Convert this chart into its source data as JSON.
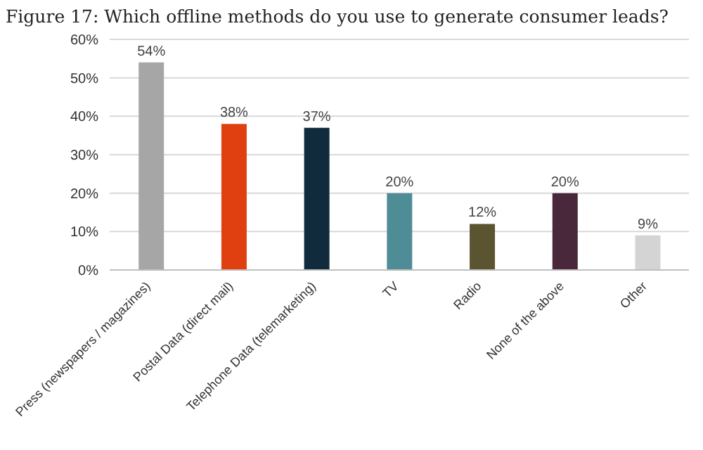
{
  "chart_data": {
    "type": "bar",
    "title": "Figure 17: Which offline methods do you use to generate consumer leads?",
    "categories": [
      "Press (newspapers / magazines)",
      "Postal Data (direct mail)",
      "Telephone Data (telemarketing)",
      "TV",
      "Radio",
      "None of the above",
      "Other"
    ],
    "values": [
      54,
      38,
      37,
      20,
      12,
      20,
      9
    ],
    "colors": [
      "#a6a6a6",
      "#e0400f",
      "#0f2b3c",
      "#4f8d96",
      "#5a5530",
      "#48283a",
      "#d4d4d4"
    ],
    "value_labels": [
      "54%",
      "38%",
      "37%",
      "20%",
      "12%",
      "20%",
      "9%"
    ],
    "ylim": [
      0,
      60
    ],
    "yticks": [
      {
        "value": 0,
        "label": "0%"
      },
      {
        "value": 10,
        "label": "10%"
      },
      {
        "value": 20,
        "label": "20%"
      },
      {
        "value": 30,
        "label": "30%"
      },
      {
        "value": 40,
        "label": "40%"
      },
      {
        "value": 50,
        "label": "50%"
      },
      {
        "value": 60,
        "label": "60%"
      }
    ],
    "grid": "y",
    "legend": false
  }
}
